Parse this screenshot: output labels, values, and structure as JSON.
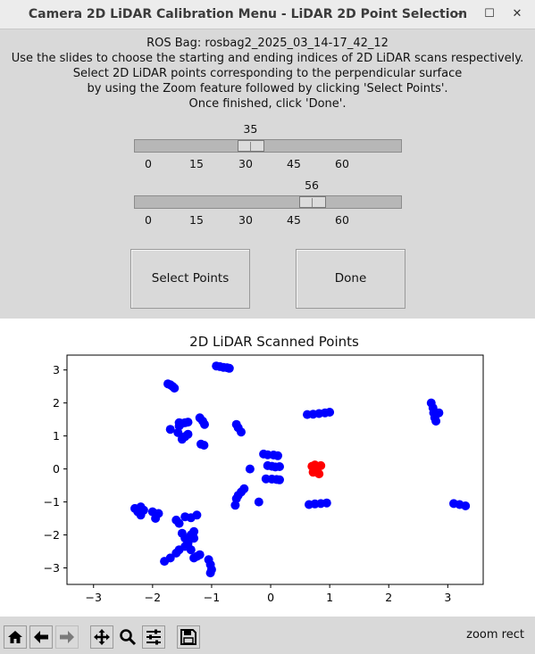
{
  "window": {
    "title": "Camera 2D LiDAR Calibration Menu - LiDAR 2D Point Selection",
    "minimize_label": "–",
    "maximize_label": "☐",
    "close_label": "✕"
  },
  "instructions": {
    "bag": "ROS Bag: rosbag2_2025_03_14-17_42_12",
    "line1": "Use the slides to choose the starting and ending indices of 2D LiDAR scans respectively.",
    "line2": "Select 2D LiDAR points corresponding to the perpendicular surface",
    "line3": "by using the Zoom feature followed by clicking 'Select Points'.",
    "line4": "Once finished, click 'Done'."
  },
  "sliders": {
    "start": {
      "value": "35",
      "value_num": 35
    },
    "end": {
      "value": "56",
      "value_num": 56
    },
    "min": 0,
    "max": 82,
    "ticks": [
      "0",
      "15",
      "30",
      "45",
      "60"
    ]
  },
  "buttons": {
    "select_points": "Select Points",
    "done": "Done"
  },
  "chart_data": {
    "type": "scatter",
    "title": "2D LiDAR Scanned Points",
    "xlim": [
      -3.45,
      3.6
    ],
    "ylim": [
      -3.5,
      3.45
    ],
    "x_ticks": [
      "−3",
      "−2",
      "−1",
      "0",
      "1",
      "2",
      "3"
    ],
    "y_ticks": [
      "3",
      "2",
      "1",
      "0",
      "−1",
      "−2",
      "−3"
    ],
    "x_tick_values": [
      -3,
      -2,
      -1,
      0,
      1,
      2,
      3
    ],
    "y_tick_values": [
      3,
      2,
      1,
      0,
      -1,
      -2,
      -3
    ],
    "grid": false,
    "series": [
      {
        "color": "#0000ff",
        "points": [
          [
            -0.92,
            3.12
          ],
          [
            -0.86,
            3.1
          ],
          [
            -0.8,
            3.08
          ],
          [
            -0.74,
            3.07
          ],
          [
            -0.7,
            3.05
          ],
          [
            -1.74,
            2.58
          ],
          [
            -1.7,
            2.55
          ],
          [
            -1.66,
            2.5
          ],
          [
            -1.63,
            2.45
          ],
          [
            -1.55,
            1.4
          ],
          [
            -1.5,
            1.38
          ],
          [
            -1.45,
            1.4
          ],
          [
            -1.4,
            1.42
          ],
          [
            -1.2,
            1.55
          ],
          [
            -1.15,
            1.45
          ],
          [
            -1.12,
            1.35
          ],
          [
            -1.4,
            1.05
          ],
          [
            -1.45,
            0.98
          ],
          [
            -1.5,
            0.9
          ],
          [
            -1.55,
            1.3
          ],
          [
            -1.57,
            1.1
          ],
          [
            -1.7,
            1.2
          ],
          [
            -1.18,
            0.75
          ],
          [
            -1.13,
            0.72
          ],
          [
            -0.58,
            1.35
          ],
          [
            -0.55,
            1.25
          ],
          [
            -0.5,
            1.12
          ],
          [
            -0.12,
            0.45
          ],
          [
            -0.05,
            0.43
          ],
          [
            0.05,
            0.42
          ],
          [
            0.12,
            0.4
          ],
          [
            -0.05,
            0.1
          ],
          [
            0.02,
            0.08
          ],
          [
            0.08,
            0.06
          ],
          [
            0.15,
            0.07
          ],
          [
            -0.35,
            0.0
          ],
          [
            -0.08,
            -0.3
          ],
          [
            0.02,
            -0.31
          ],
          [
            0.1,
            -0.32
          ],
          [
            0.15,
            -0.33
          ],
          [
            -0.45,
            -0.6
          ],
          [
            -0.5,
            -0.7
          ],
          [
            -0.55,
            -0.8
          ],
          [
            -0.58,
            -0.9
          ],
          [
            -0.6,
            -1.1
          ],
          [
            -0.2,
            -1.0
          ],
          [
            0.62,
            1.65
          ],
          [
            0.72,
            1.66
          ],
          [
            0.82,
            1.68
          ],
          [
            0.92,
            1.7
          ],
          [
            1.0,
            1.72
          ],
          [
            0.65,
            -1.08
          ],
          [
            0.75,
            -1.06
          ],
          [
            0.85,
            -1.05
          ],
          [
            0.95,
            -1.03
          ],
          [
            2.72,
            2.0
          ],
          [
            2.75,
            1.85
          ],
          [
            2.76,
            1.7
          ],
          [
            2.78,
            1.55
          ],
          [
            2.8,
            1.45
          ],
          [
            2.85,
            1.7
          ],
          [
            3.1,
            -1.05
          ],
          [
            3.2,
            -1.08
          ],
          [
            3.3,
            -1.12
          ],
          [
            -2.3,
            -1.2
          ],
          [
            -2.25,
            -1.3
          ],
          [
            -2.2,
            -1.4
          ],
          [
            -2.0,
            -1.3
          ],
          [
            -1.9,
            -1.35
          ],
          [
            -1.95,
            -1.5
          ],
          [
            -2.2,
            -1.15
          ],
          [
            -2.15,
            -1.25
          ],
          [
            -1.45,
            -1.45
          ],
          [
            -1.35,
            -1.48
          ],
          [
            -1.25,
            -1.4
          ],
          [
            -1.6,
            -1.55
          ],
          [
            -1.55,
            -1.65
          ],
          [
            -1.5,
            -1.95
          ],
          [
            -1.45,
            -2.1
          ],
          [
            -1.4,
            -2.25
          ],
          [
            -1.45,
            -2.35
          ],
          [
            -1.3,
            -1.9
          ],
          [
            -1.35,
            -2.0
          ],
          [
            -1.3,
            -2.1
          ],
          [
            -1.8,
            -2.8
          ],
          [
            -1.7,
            -2.7
          ],
          [
            -1.6,
            -2.55
          ],
          [
            -1.55,
            -2.45
          ],
          [
            -1.3,
            -2.7
          ],
          [
            -1.25,
            -2.65
          ],
          [
            -1.2,
            -2.6
          ],
          [
            -1.05,
            -2.75
          ],
          [
            -1.02,
            -2.9
          ],
          [
            -1.0,
            -3.05
          ],
          [
            -1.02,
            -3.15
          ],
          [
            -1.4,
            -2.35
          ],
          [
            -1.35,
            -2.45
          ]
        ]
      },
      {
        "color": "#ff0000",
        "points": [
          [
            0.7,
            0.08
          ],
          [
            0.75,
            0.12
          ],
          [
            0.8,
            0.05
          ],
          [
            0.85,
            0.1
          ],
          [
            0.78,
            -0.05
          ],
          [
            0.82,
            -0.15
          ],
          [
            0.75,
            0.0
          ],
          [
            0.72,
            -0.1
          ]
        ]
      }
    ]
  },
  "toolbar": {
    "message": "zoom rect",
    "tools": [
      "home-icon",
      "back-icon",
      "forward-icon",
      "pan-icon",
      "zoom-icon",
      "configure-subplots-icon",
      "save-icon"
    ]
  }
}
